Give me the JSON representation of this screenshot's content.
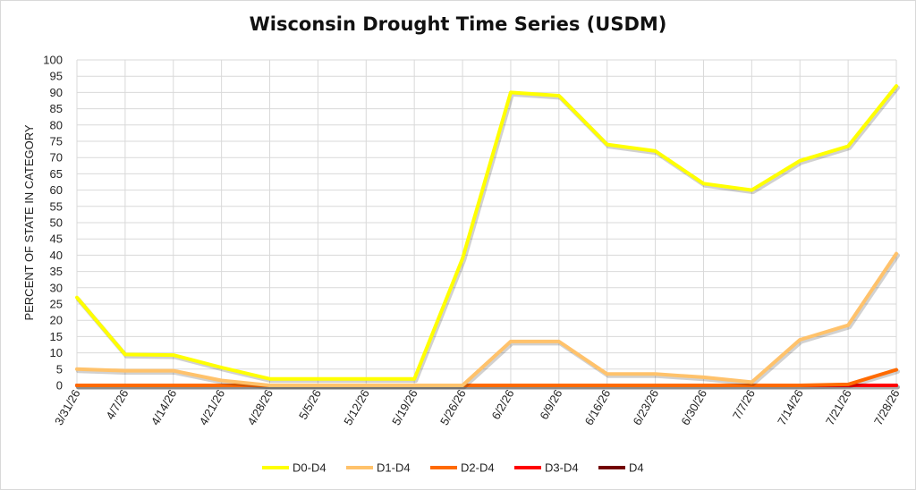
{
  "chart_data": {
    "type": "line",
    "title": "Wisconsin Drought Time Series (USDM)",
    "ylabel": "PERCENT OF STATE IN CATEGORY",
    "xlabel": "",
    "ylim": [
      0,
      100
    ],
    "ytick_step": 5,
    "grid": true,
    "legend_position": "bottom",
    "categories": [
      "3/31/26",
      "4/7/26",
      "4/14/26",
      "4/21/26",
      "4/28/26",
      "5/5/26",
      "5/12/26",
      "5/19/26",
      "5/26/26",
      "6/2/26",
      "6/9/26",
      "6/16/26",
      "6/23/26",
      "6/30/26",
      "7/7/26",
      "7/14/26",
      "7/21/26",
      "7/28/26"
    ],
    "series": [
      {
        "name": "D0-D4",
        "color": "#ffff00",
        "values": [
          27,
          9.5,
          9.3,
          5.5,
          2,
          2,
          2,
          2,
          39,
          90,
          89,
          74,
          72,
          62,
          60,
          69,
          73.5,
          92
        ]
      },
      {
        "name": "D1-D4",
        "color": "#ffc26b",
        "values": [
          5,
          4.5,
          4.5,
          1.5,
          0,
          0,
          0,
          0,
          0,
          13.5,
          13.5,
          3.5,
          3.5,
          2.5,
          1,
          14,
          18.5,
          40.5
        ]
      },
      {
        "name": "D2-D4",
        "color": "#ff6a00",
        "values": [
          0,
          0,
          0,
          0,
          0,
          0,
          0,
          0,
          0,
          0,
          0,
          0,
          0,
          0,
          0,
          0,
          0.3,
          4.8
        ]
      },
      {
        "name": "D3-D4",
        "color": "#ff0000",
        "values": [
          0,
          0,
          0,
          0,
          0,
          0,
          0,
          0,
          0,
          0,
          0,
          0,
          0,
          0,
          0,
          0,
          0,
          0
        ]
      },
      {
        "name": "D4",
        "color": "#730000",
        "values": [
          0,
          0,
          0,
          0,
          0,
          0,
          0,
          0,
          0,
          0,
          0,
          0,
          0,
          0,
          0,
          0,
          0,
          0
        ]
      }
    ]
  }
}
